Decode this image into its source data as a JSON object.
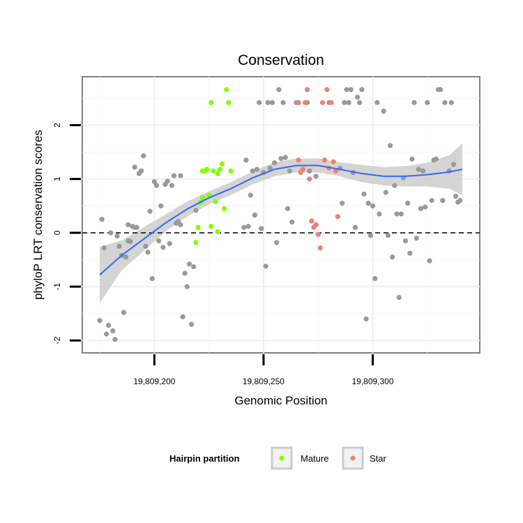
{
  "chart_data": {
    "type": "scatter",
    "title": "Conservation",
    "xlabel": "Genomic Position",
    "ylabel": "phyloP LRT conservation scores",
    "xlim": [
      19809167,
      19809349
    ],
    "ylim": [
      -2.23,
      2.9
    ],
    "x_ticks": [
      19809200,
      19809250,
      19809300
    ],
    "x_tick_labels": [
      "19,809,200",
      "19,809,250",
      "19,809,300"
    ],
    "y_ticks": [
      -2,
      -1,
      0,
      1,
      2
    ],
    "y_tick_labels": [
      "-2",
      "-1",
      "0",
      "1",
      "2"
    ],
    "grid": true,
    "reference_line": {
      "y": 0,
      "style": "dashed"
    },
    "legend": {
      "title": "Hairpin partition",
      "position": "bottom",
      "entries": [
        {
          "label": "Mature",
          "color": "#7fff00"
        },
        {
          "label": "Star",
          "color": "#f08070"
        }
      ]
    },
    "colors": {
      "other": "#999999",
      "Mature": "#7fff00",
      "Star": "#f08070",
      "smooth_line": "#3366ff",
      "smooth_band": "#cccccc"
    },
    "series": [
      {
        "name": "",
        "color": "#999999",
        "points": [
          [
            19809175,
            -1.63
          ],
          [
            19809176,
            0.25
          ],
          [
            19809177,
            -0.28
          ],
          [
            19809178,
            -1.88
          ],
          [
            19809179,
            -1.72
          ],
          [
            19809180,
            0.0
          ],
          [
            19809181,
            -1.82
          ],
          [
            19809182,
            -1.98
          ],
          [
            19809183,
            -0.06
          ],
          [
            19809184,
            -0.25
          ],
          [
            19809185,
            -0.42
          ],
          [
            19809186,
            -1.48
          ],
          [
            19809187,
            -0.45
          ],
          [
            19809188,
            -0.15
          ],
          [
            19809188,
            0.15
          ],
          [
            19809189,
            -0.16
          ],
          [
            19809190,
            0.12
          ],
          [
            19809191,
            0.1
          ],
          [
            19809191,
            1.22
          ],
          [
            19809192,
            0.1
          ],
          [
            19809193,
            1.1
          ],
          [
            19809194,
            1.15
          ],
          [
            19809195,
            1.43
          ],
          [
            19809196,
            -0.25
          ],
          [
            19809197,
            -0.36
          ],
          [
            19809198,
            0.4
          ],
          [
            19809199,
            -0.85
          ],
          [
            19809200,
            0.95
          ],
          [
            19809201,
            0.88
          ],
          [
            19809202,
            -0.15
          ],
          [
            19809203,
            0.5
          ],
          [
            19809204,
            -0.27
          ],
          [
            19809205,
            0.9
          ],
          [
            19809206,
            0.96
          ],
          [
            19809207,
            -0.2
          ],
          [
            19809208,
            0.88
          ],
          [
            19809209,
            1.06
          ],
          [
            19809210,
            0.18
          ],
          [
            19809211,
            0.21
          ],
          [
            19809212,
            1.06
          ],
          [
            19809212,
            0.15
          ],
          [
            19809213,
            -1.56
          ],
          [
            19809214,
            -0.75
          ],
          [
            19809215,
            -1.0
          ],
          [
            19809216,
            -0.58
          ],
          [
            19809217,
            -1.7
          ],
          [
            19809218,
            -0.63
          ],
          [
            19809219,
            0.42
          ],
          [
            19809241,
            0.1
          ],
          [
            19809242,
            1.35
          ],
          [
            19809243,
            0.12
          ],
          [
            19809244,
            0.7
          ],
          [
            19809245,
            1.15
          ],
          [
            19809246,
            0.33
          ],
          [
            19809247,
            1.18
          ],
          [
            19809248,
            2.42
          ],
          [
            19809249,
            0.08
          ],
          [
            19809250,
            1.12
          ],
          [
            19809251,
            -0.62
          ],
          [
            19809252,
            2.42
          ],
          [
            19809253,
            1.2
          ],
          [
            19809254,
            2.42
          ],
          [
            19809255,
            1.3
          ],
          [
            19809256,
            -0.18
          ],
          [
            19809257,
            2.66
          ],
          [
            19809258,
            1.38
          ],
          [
            19809259,
            2.42
          ],
          [
            19809260,
            1.4
          ],
          [
            19809261,
            0.45
          ],
          [
            19809262,
            1.15
          ],
          [
            19809263,
            0.2
          ],
          [
            19809265,
            2.42
          ],
          [
            19809270,
            2.42
          ],
          [
            19809271,
            1.15
          ],
          [
            19809274,
            1.05
          ],
          [
            19809280,
            2.42
          ],
          [
            19809285,
            1.2
          ],
          [
            19809286,
            0.55
          ],
          [
            19809287,
            2.42
          ],
          [
            19809288,
            2.66
          ],
          [
            19809289,
            2.42
          ],
          [
            19809290,
            2.66
          ],
          [
            19809291,
            1.12
          ],
          [
            19809292,
            0.1
          ],
          [
            19809293,
            2.52
          ],
          [
            19809294,
            2.42
          ],
          [
            19809295,
            2.66
          ],
          [
            19809296,
            0.72
          ],
          [
            19809297,
            -1.6
          ],
          [
            19809298,
            0.55
          ],
          [
            19809299,
            -0.05
          ],
          [
            19809300,
            0.5
          ],
          [
            19809301,
            -0.85
          ],
          [
            19809302,
            2.42
          ],
          [
            19809303,
            0.35
          ],
          [
            19809305,
            2.26
          ],
          [
            19809306,
            0.75
          ],
          [
            19809307,
            -0.05
          ],
          [
            19809308,
            1.62
          ],
          [
            19809309,
            -0.45
          ],
          [
            19809310,
            0.88
          ],
          [
            19809311,
            0.35
          ],
          [
            19809312,
            -1.2
          ],
          [
            19809313,
            0.35
          ],
          [
            19809314,
            1.02
          ],
          [
            19809315,
            -0.15
          ],
          [
            19809316,
            0.55
          ],
          [
            19809317,
            -0.38
          ],
          [
            19809318,
            1.37
          ],
          [
            19809319,
            2.42
          ],
          [
            19809320,
            -0.1
          ],
          [
            19809321,
            1.18
          ],
          [
            19809322,
            0.45
          ],
          [
            19809323,
            1.15
          ],
          [
            19809324,
            0.48
          ],
          [
            19809325,
            2.42
          ],
          [
            19809326,
            -0.52
          ],
          [
            19809327,
            0.6
          ],
          [
            19809328,
            1.35
          ],
          [
            19809329,
            1.37
          ],
          [
            19809330,
            2.66
          ],
          [
            19809331,
            2.66
          ],
          [
            19809332,
            0.6
          ],
          [
            19809333,
            2.42
          ],
          [
            19809335,
            1.15
          ],
          [
            19809336,
            2.42
          ],
          [
            19809337,
            1.27
          ],
          [
            19809338,
            0.68
          ],
          [
            19809339,
            0.57
          ],
          [
            19809340,
            0.6
          ]
        ]
      },
      {
        "name": "Mature",
        "color": "#7fff00",
        "points": [
          [
            19809219,
            -0.18
          ],
          [
            19809220,
            0.1
          ],
          [
            19809221,
            0.56
          ],
          [
            19809222,
            0.65
          ],
          [
            19809222,
            1.15
          ],
          [
            19809223,
            1.15
          ],
          [
            19809224,
            1.18
          ],
          [
            19809225,
            0.7
          ],
          [
            19809226,
            0.12
          ],
          [
            19809226,
            2.42
          ],
          [
            19809227,
            1.15
          ],
          [
            19809228,
            0.58
          ],
          [
            19809229,
            1.1
          ],
          [
            19809229,
            0.02
          ],
          [
            19809230,
            1.18
          ],
          [
            19809231,
            1.28
          ],
          [
            19809232,
            0.45
          ],
          [
            19809233,
            2.66
          ],
          [
            19809234,
            2.42
          ],
          [
            19809235,
            1.15
          ]
        ]
      },
      {
        "name": "Star",
        "color": "#f08070",
        "points": [
          [
            19809266,
            2.42
          ],
          [
            19809266,
            1.35
          ],
          [
            19809267,
            1.12
          ],
          [
            19809268,
            1.18
          ],
          [
            19809269,
            2.42
          ],
          [
            19809270,
            2.66
          ],
          [
            19809271,
            1.0
          ],
          [
            19809272,
            0.22
          ],
          [
            19809273,
            0.1
          ],
          [
            19809274,
            0.15
          ],
          [
            19809275,
            -0.03
          ],
          [
            19809276,
            -0.28
          ],
          [
            19809277,
            2.42
          ],
          [
            19809278,
            1.35
          ],
          [
            19809279,
            2.66
          ],
          [
            19809280,
            1.2
          ],
          [
            19809281,
            2.42
          ],
          [
            19809282,
            1.32
          ],
          [
            19809283,
            1.15
          ],
          [
            19809284,
            0.3
          ]
        ]
      }
    ],
    "smooth": {
      "x": [
        19809175,
        19809185,
        19809195,
        19809205,
        19809215,
        19809225,
        19809235,
        19809245,
        19809255,
        19809265,
        19809275,
        19809285,
        19809295,
        19809305,
        19809315,
        19809325,
        19809335,
        19809341
      ],
      "y": [
        -0.78,
        -0.42,
        -0.12,
        0.18,
        0.44,
        0.65,
        0.82,
        1.02,
        1.18,
        1.25,
        1.25,
        1.18,
        1.1,
        1.05,
        1.05,
        1.08,
        1.13,
        1.18
      ],
      "lower": [
        -1.3,
        -0.7,
        -0.34,
        0.02,
        0.3,
        0.53,
        0.7,
        0.9,
        1.05,
        1.12,
        1.12,
        1.05,
        0.94,
        0.88,
        0.86,
        0.86,
        0.82,
        0.7
      ],
      "upper": [
        -0.26,
        -0.14,
        0.1,
        0.34,
        0.58,
        0.77,
        0.94,
        1.14,
        1.31,
        1.38,
        1.38,
        1.31,
        1.26,
        1.22,
        1.24,
        1.3,
        1.44,
        1.66
      ]
    }
  }
}
